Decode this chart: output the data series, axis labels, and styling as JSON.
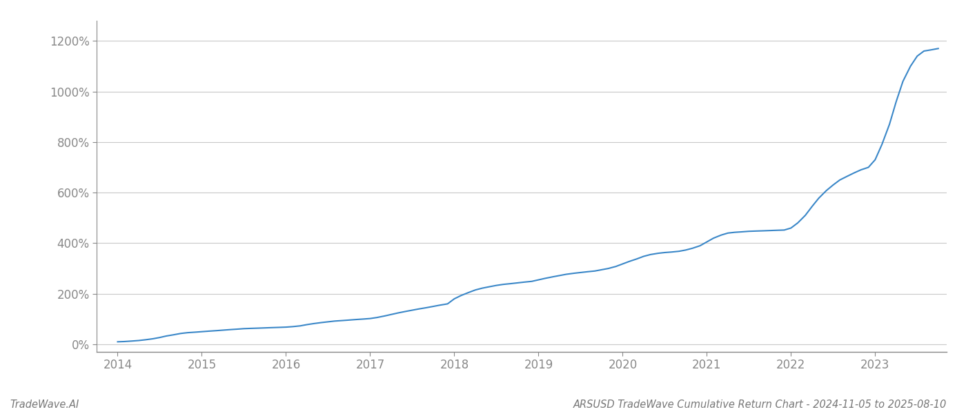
{
  "title": "ARSUSD TradeWave Cumulative Return Chart - 2024-11-05 to 2025-08-10",
  "watermark": "TradeWave.AI",
  "line_color": "#3a87c8",
  "background_color": "#ffffff",
  "grid_color": "#c8c8c8",
  "x_years": [
    2014.0,
    2014.08,
    2014.17,
    2014.25,
    2014.33,
    2014.42,
    2014.5,
    2014.58,
    2014.67,
    2014.75,
    2014.83,
    2014.92,
    2015.0,
    2015.08,
    2015.17,
    2015.25,
    2015.33,
    2015.42,
    2015.5,
    2015.58,
    2015.67,
    2015.75,
    2015.83,
    2015.92,
    2016.0,
    2016.08,
    2016.17,
    2016.25,
    2016.33,
    2016.42,
    2016.5,
    2016.58,
    2016.67,
    2016.75,
    2016.83,
    2016.92,
    2017.0,
    2017.08,
    2017.17,
    2017.25,
    2017.33,
    2017.42,
    2017.5,
    2017.58,
    2017.67,
    2017.75,
    2017.83,
    2017.92,
    2018.0,
    2018.08,
    2018.17,
    2018.25,
    2018.33,
    2018.42,
    2018.5,
    2018.58,
    2018.67,
    2018.75,
    2018.83,
    2018.92,
    2019.0,
    2019.08,
    2019.17,
    2019.25,
    2019.33,
    2019.42,
    2019.5,
    2019.58,
    2019.67,
    2019.75,
    2019.83,
    2019.92,
    2020.0,
    2020.08,
    2020.17,
    2020.25,
    2020.33,
    2020.42,
    2020.5,
    2020.58,
    2020.67,
    2020.75,
    2020.83,
    2020.92,
    2021.0,
    2021.08,
    2021.17,
    2021.25,
    2021.33,
    2021.42,
    2021.5,
    2021.58,
    2021.67,
    2021.75,
    2021.83,
    2021.92,
    2022.0,
    2022.08,
    2022.17,
    2022.25,
    2022.33,
    2022.42,
    2022.5,
    2022.58,
    2022.67,
    2022.75,
    2022.83,
    2022.92,
    2023.0,
    2023.08,
    2023.17,
    2023.25,
    2023.33,
    2023.42,
    2023.5,
    2023.58,
    2023.67,
    2023.75
  ],
  "y_values": [
    10,
    11,
    13,
    15,
    18,
    22,
    27,
    33,
    38,
    43,
    46,
    48,
    50,
    52,
    54,
    56,
    58,
    60,
    62,
    63,
    64,
    65,
    66,
    67,
    68,
    70,
    73,
    78,
    82,
    86,
    89,
    92,
    94,
    96,
    98,
    100,
    102,
    106,
    112,
    118,
    124,
    130,
    135,
    140,
    145,
    150,
    155,
    160,
    180,
    193,
    205,
    215,
    222,
    228,
    233,
    237,
    240,
    243,
    246,
    249,
    255,
    261,
    267,
    272,
    277,
    281,
    284,
    287,
    290,
    295,
    300,
    308,
    318,
    328,
    338,
    348,
    355,
    360,
    363,
    365,
    368,
    373,
    380,
    390,
    405,
    420,
    432,
    440,
    443,
    445,
    447,
    448,
    449,
    450,
    451,
    452,
    460,
    480,
    510,
    545,
    578,
    608,
    630,
    650,
    665,
    678,
    690,
    700,
    730,
    790,
    870,
    960,
    1040,
    1100,
    1140,
    1160,
    1165,
    1170
  ],
  "yticks": [
    0,
    200,
    400,
    600,
    800,
    1000,
    1200
  ],
  "xticks": [
    2014,
    2015,
    2016,
    2017,
    2018,
    2019,
    2020,
    2021,
    2022,
    2023
  ],
  "xlim": [
    2013.75,
    2023.85
  ],
  "ylim": [
    -30,
    1280
  ],
  "line_width": 1.5,
  "title_fontsize": 10.5,
  "watermark_fontsize": 10.5,
  "tick_fontsize": 12,
  "tick_color": "#888888",
  "spine_color": "#888888"
}
